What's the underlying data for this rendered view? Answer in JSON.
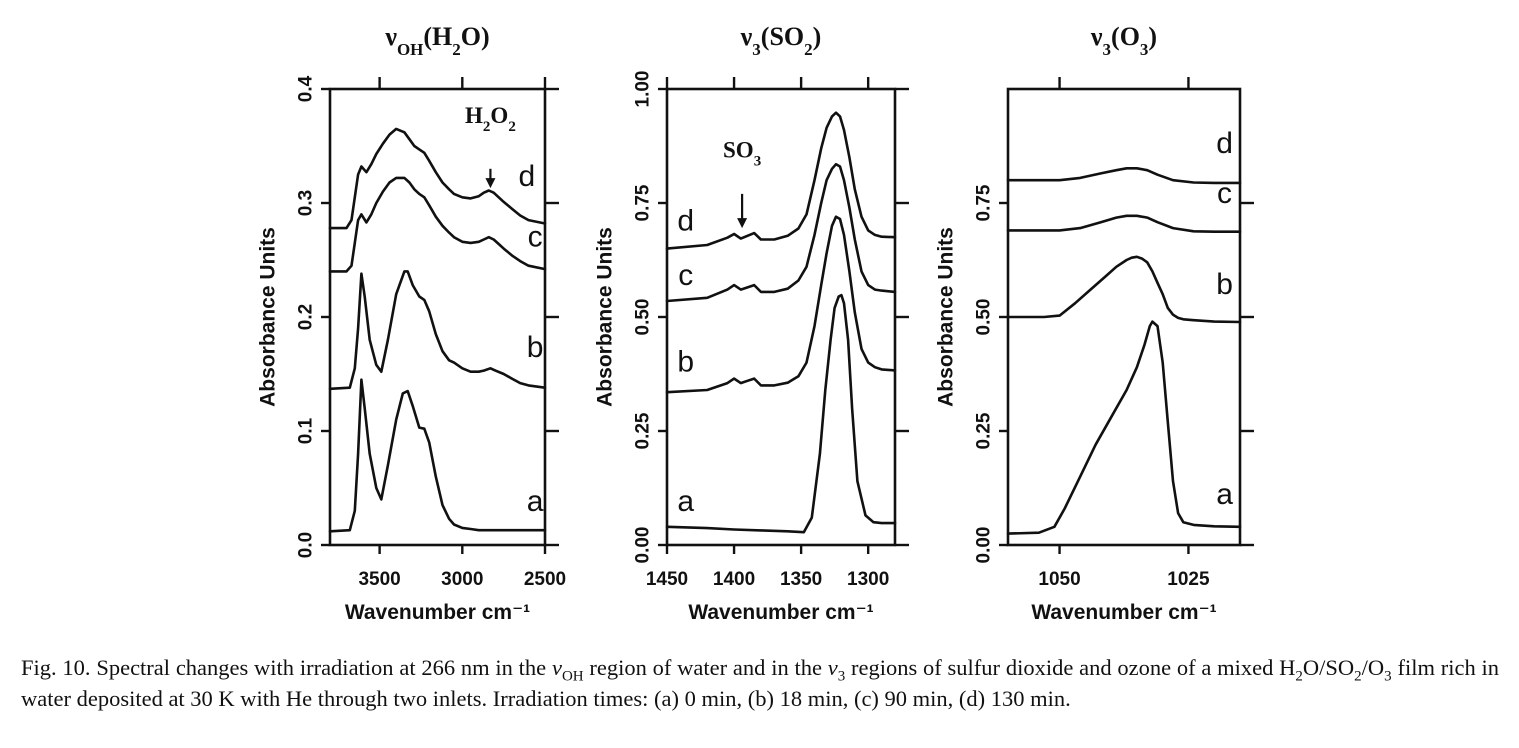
{
  "chart_data": [
    {
      "type": "line",
      "title": "νOH(H2O)",
      "title_parts": [
        {
          "t": "ν"
        },
        {
          "t": "OH",
          "sub": true
        },
        {
          "t": "(H"
        },
        {
          "t": "2",
          "sub": true
        },
        {
          "t": "O)"
        }
      ],
      "xlabel": "Wavenumber cm⁻¹",
      "ylabel": "Absorbance Units",
      "xlim": [
        3800,
        2500
      ],
      "ylim": [
        0.0,
        0.4
      ],
      "x_ticks": [
        3500,
        3000,
        2500
      ],
      "x_tick_labels": [
        "3500",
        "3000",
        "2500"
      ],
      "top_ticks": [
        3500,
        3000,
        2500
      ],
      "y_ticks": [
        0.0,
        0.1,
        0.2,
        0.3,
        0.4
      ],
      "y_tick_labels": [
        "0.0",
        "0.1",
        "0.2",
        "0.3",
        "0.4"
      ],
      "right_ticks": [
        0.0,
        0.1,
        0.2,
        0.3,
        0.4
      ],
      "annotation": {
        "parts": [
          {
            "t": "H"
          },
          {
            "t": "2",
            "sub": true
          },
          {
            "t": "O"
          },
          {
            "t": "2",
            "sub": true
          }
        ],
        "x": 2830,
        "y_text": 0.37,
        "y_tail": 0.33,
        "y_head": 0.313
      },
      "series": [
        {
          "name": "a",
          "label_x": 2560,
          "label_y": 0.03,
          "x": [
            3800,
            3680,
            3650,
            3630,
            3610,
            3590,
            3560,
            3520,
            3490,
            3450,
            3400,
            3360,
            3330,
            3300,
            3260,
            3230,
            3200,
            3160,
            3120,
            3080,
            3050,
            3000,
            2950,
            2900,
            2800,
            2700,
            2600,
            2500
          ],
          "y": [
            0.012,
            0.013,
            0.03,
            0.08,
            0.145,
            0.12,
            0.08,
            0.05,
            0.04,
            0.07,
            0.11,
            0.133,
            0.135,
            0.122,
            0.103,
            0.102,
            0.09,
            0.06,
            0.035,
            0.023,
            0.018,
            0.015,
            0.014,
            0.013,
            0.013,
            0.013,
            0.013,
            0.013
          ]
        },
        {
          "name": "b",
          "label_x": 2560,
          "label_y": 0.165,
          "x": [
            3800,
            3680,
            3650,
            3630,
            3610,
            3590,
            3560,
            3520,
            3490,
            3450,
            3400,
            3350,
            3330,
            3300,
            3260,
            3230,
            3200,
            3160,
            3120,
            3080,
            3050,
            3000,
            2950,
            2900,
            2870,
            2830,
            2800,
            2750,
            2700,
            2650,
            2600,
            2500
          ],
          "y": [
            0.137,
            0.138,
            0.155,
            0.19,
            0.238,
            0.218,
            0.18,
            0.158,
            0.152,
            0.18,
            0.22,
            0.24,
            0.24,
            0.228,
            0.218,
            0.215,
            0.205,
            0.185,
            0.17,
            0.162,
            0.16,
            0.155,
            0.152,
            0.152,
            0.153,
            0.155,
            0.153,
            0.15,
            0.146,
            0.142,
            0.14,
            0.138
          ]
        },
        {
          "name": "c",
          "label_x": 2560,
          "label_y": 0.262,
          "x": [
            3800,
            3700,
            3670,
            3650,
            3630,
            3610,
            3580,
            3550,
            3520,
            3480,
            3440,
            3400,
            3350,
            3320,
            3290,
            3260,
            3230,
            3200,
            3160,
            3120,
            3080,
            3050,
            3000,
            2950,
            2900,
            2870,
            2840,
            2810,
            2780,
            2750,
            2700,
            2650,
            2600,
            2500
          ],
          "y": [
            0.24,
            0.24,
            0.245,
            0.265,
            0.285,
            0.29,
            0.283,
            0.29,
            0.3,
            0.31,
            0.318,
            0.322,
            0.322,
            0.318,
            0.312,
            0.308,
            0.305,
            0.298,
            0.288,
            0.28,
            0.274,
            0.27,
            0.266,
            0.265,
            0.266,
            0.268,
            0.27,
            0.268,
            0.264,
            0.26,
            0.254,
            0.249,
            0.245,
            0.242
          ]
        },
        {
          "name": "d",
          "label_x": 2610,
          "label_y": 0.315,
          "x": [
            3800,
            3700,
            3670,
            3650,
            3630,
            3610,
            3580,
            3550,
            3520,
            3480,
            3440,
            3400,
            3350,
            3320,
            3290,
            3260,
            3230,
            3200,
            3160,
            3120,
            3080,
            3050,
            3000,
            2950,
            2900,
            2870,
            2840,
            2810,
            2780,
            2750,
            2700,
            2650,
            2600,
            2500
          ],
          "y": [
            0.278,
            0.278,
            0.285,
            0.305,
            0.325,
            0.332,
            0.327,
            0.334,
            0.343,
            0.352,
            0.36,
            0.365,
            0.362,
            0.356,
            0.35,
            0.347,
            0.344,
            0.337,
            0.327,
            0.318,
            0.312,
            0.308,
            0.305,
            0.304,
            0.306,
            0.309,
            0.311,
            0.309,
            0.305,
            0.301,
            0.295,
            0.289,
            0.285,
            0.282
          ]
        }
      ]
    },
    {
      "type": "line",
      "title": "ν3(SO2)",
      "title_parts": [
        {
          "t": "ν"
        },
        {
          "t": "3",
          "sub": true
        },
        {
          "t": "(SO"
        },
        {
          "t": "2",
          "sub": true
        },
        {
          "t": ")"
        }
      ],
      "xlabel": "Wavenumber cm⁻¹",
      "ylabel": "Absorbance Units",
      "xlim": [
        1450,
        1280
      ],
      "ylim": [
        0.0,
        1.0
      ],
      "x_ticks": [
        1450,
        1400,
        1350,
        1300
      ],
      "x_tick_labels": [
        "1450",
        "1400",
        "1350",
        "1300"
      ],
      "top_ticks": [
        1450,
        1400,
        1350,
        1300
      ],
      "y_ticks": [
        0.0,
        0.25,
        0.5,
        0.75,
        1.0
      ],
      "y_tick_labels": [
        "0.00",
        "0.25",
        "0.50",
        "0.75",
        "1.00"
      ],
      "right_ticks": [
        0.0,
        0.25,
        0.5,
        0.75,
        1.0
      ],
      "annotation": {
        "parts": [
          {
            "t": "SO"
          },
          {
            "t": "3",
            "sub": true
          }
        ],
        "x": 1394,
        "y_text": 0.85,
        "y_tail": 0.77,
        "y_head": 0.695
      },
      "series": [
        {
          "name": "a",
          "label_x": 1436,
          "label_y": 0.075,
          "x": [
            1450,
            1420,
            1400,
            1380,
            1360,
            1348,
            1342,
            1336,
            1332,
            1328,
            1325,
            1322,
            1320,
            1318,
            1315,
            1312,
            1308,
            1302,
            1296,
            1290,
            1280
          ],
          "y": [
            0.04,
            0.037,
            0.034,
            0.032,
            0.03,
            0.028,
            0.06,
            0.2,
            0.34,
            0.45,
            0.52,
            0.545,
            0.548,
            0.53,
            0.45,
            0.3,
            0.14,
            0.065,
            0.05,
            0.048,
            0.048
          ]
        },
        {
          "name": "b",
          "label_x": 1436,
          "label_y": 0.38,
          "x": [
            1450,
            1420,
            1405,
            1400,
            1395,
            1390,
            1385,
            1380,
            1370,
            1360,
            1352,
            1346,
            1340,
            1335,
            1331,
            1327,
            1324,
            1321,
            1318,
            1314,
            1310,
            1305,
            1300,
            1295,
            1290,
            1280
          ],
          "y": [
            0.335,
            0.34,
            0.355,
            0.365,
            0.355,
            0.36,
            0.365,
            0.35,
            0.35,
            0.356,
            0.37,
            0.4,
            0.48,
            0.57,
            0.64,
            0.7,
            0.72,
            0.715,
            0.68,
            0.6,
            0.51,
            0.43,
            0.4,
            0.39,
            0.385,
            0.383
          ]
        },
        {
          "name": "c",
          "label_x": 1436,
          "label_y": 0.57,
          "x": [
            1450,
            1420,
            1405,
            1400,
            1395,
            1390,
            1385,
            1380,
            1370,
            1360,
            1352,
            1346,
            1340,
            1335,
            1331,
            1327,
            1324,
            1321,
            1318,
            1314,
            1310,
            1305,
            1300,
            1295,
            1290,
            1280
          ],
          "y": [
            0.535,
            0.542,
            0.56,
            0.57,
            0.56,
            0.565,
            0.57,
            0.555,
            0.555,
            0.562,
            0.58,
            0.61,
            0.68,
            0.75,
            0.8,
            0.825,
            0.835,
            0.83,
            0.8,
            0.74,
            0.67,
            0.6,
            0.57,
            0.56,
            0.558,
            0.555
          ]
        },
        {
          "name": "d",
          "label_x": 1436,
          "label_y": 0.69,
          "x": [
            1450,
            1420,
            1405,
            1400,
            1395,
            1390,
            1385,
            1380,
            1370,
            1360,
            1352,
            1346,
            1340,
            1335,
            1331,
            1327,
            1324,
            1321,
            1318,
            1314,
            1310,
            1305,
            1300,
            1295,
            1290,
            1280
          ],
          "y": [
            0.65,
            0.658,
            0.674,
            0.682,
            0.672,
            0.678,
            0.684,
            0.67,
            0.67,
            0.678,
            0.694,
            0.725,
            0.8,
            0.87,
            0.915,
            0.94,
            0.948,
            0.94,
            0.91,
            0.85,
            0.78,
            0.72,
            0.69,
            0.68,
            0.676,
            0.675
          ]
        }
      ]
    },
    {
      "type": "line",
      "title": "ν3(O3)",
      "title_parts": [
        {
          "t": "ν"
        },
        {
          "t": "3",
          "sub": true
        },
        {
          "t": "(O"
        },
        {
          "t": "3",
          "sub": true
        },
        {
          "t": ")"
        }
      ],
      "xlabel": "Wavenumber cm⁻¹",
      "ylabel": "Absorbance Units",
      "xlim": [
        1060,
        1015
      ],
      "ylim": [
        0.0,
        1.0
      ],
      "x_ticks": [
        1050,
        1025
      ],
      "x_tick_labels": [
        "1050",
        "1025"
      ],
      "top_ticks": [
        1050,
        1025
      ],
      "y_ticks": [
        0.0,
        0.25,
        0.5,
        0.75
      ],
      "y_tick_labels": [
        "0.00",
        "0.25",
        "0.50",
        "0.75"
      ],
      "right_ticks": [
        0.0,
        0.25,
        0.5,
        0.75
      ],
      "series": [
        {
          "name": "a",
          "label_x": 1018,
          "label_y": 0.09,
          "x": [
            1060,
            1054,
            1051,
            1049,
            1046,
            1043,
            1040,
            1037,
            1035,
            1033.5,
            1032.5,
            1032,
            1031,
            1030,
            1029,
            1028,
            1027,
            1026,
            1024,
            1020,
            1015
          ],
          "y": [
            0.025,
            0.027,
            0.04,
            0.08,
            0.15,
            0.22,
            0.28,
            0.34,
            0.39,
            0.44,
            0.48,
            0.49,
            0.48,
            0.4,
            0.27,
            0.14,
            0.07,
            0.05,
            0.044,
            0.041,
            0.04
          ]
        },
        {
          "name": "b",
          "label_x": 1018,
          "label_y": 0.55,
          "x": [
            1060,
            1053,
            1050,
            1047,
            1044,
            1041,
            1039,
            1037,
            1036,
            1035,
            1034,
            1033,
            1032,
            1031,
            1030,
            1029,
            1028,
            1027,
            1026,
            1024,
            1020,
            1015
          ],
          "y": [
            0.5,
            0.5,
            0.503,
            0.53,
            0.56,
            0.59,
            0.61,
            0.625,
            0.63,
            0.632,
            0.628,
            0.62,
            0.6,
            0.575,
            0.55,
            0.52,
            0.505,
            0.498,
            0.495,
            0.493,
            0.49,
            0.489
          ]
        },
        {
          "name": "c",
          "label_x": 1018,
          "label_y": 0.75,
          "x": [
            1060,
            1050,
            1046,
            1042,
            1039,
            1037,
            1035,
            1033,
            1031,
            1028,
            1024,
            1020,
            1015
          ],
          "y": [
            0.69,
            0.69,
            0.695,
            0.708,
            0.718,
            0.722,
            0.722,
            0.718,
            0.708,
            0.695,
            0.688,
            0.687,
            0.687
          ]
        },
        {
          "name": "d",
          "label_x": 1018,
          "label_y": 0.86,
          "x": [
            1060,
            1050,
            1046,
            1042,
            1039,
            1037,
            1035,
            1033,
            1031,
            1028,
            1024,
            1020,
            1015
          ],
          "y": [
            0.8,
            0.8,
            0.805,
            0.815,
            0.822,
            0.826,
            0.826,
            0.822,
            0.812,
            0.8,
            0.795,
            0.794,
            0.794
          ]
        }
      ]
    }
  ],
  "caption": {
    "parts": [
      {
        "t": "Fig. 10. Spectral changes with irradiation at 266 nm in the "
      },
      {
        "t": "ν",
        "i": true
      },
      {
        "t": "OH",
        "sub": true
      },
      {
        "t": " region of water and in the "
      },
      {
        "t": "ν",
        "i": true
      },
      {
        "t": "3",
        "sub": true
      },
      {
        "t": " regions of sulfur dioxide and ozone of a mixed H"
      },
      {
        "t": "2",
        "sub": true
      },
      {
        "t": "O/SO"
      },
      {
        "t": "2",
        "sub": true
      },
      {
        "t": "/O"
      },
      {
        "t": "3",
        "sub": true
      },
      {
        "t": " film rich in water deposited at 30 K with He through two inlets. Irradiation times: (a) 0 min, (b) 18 min, (c) 90 min, (d) 130 min."
      }
    ]
  }
}
